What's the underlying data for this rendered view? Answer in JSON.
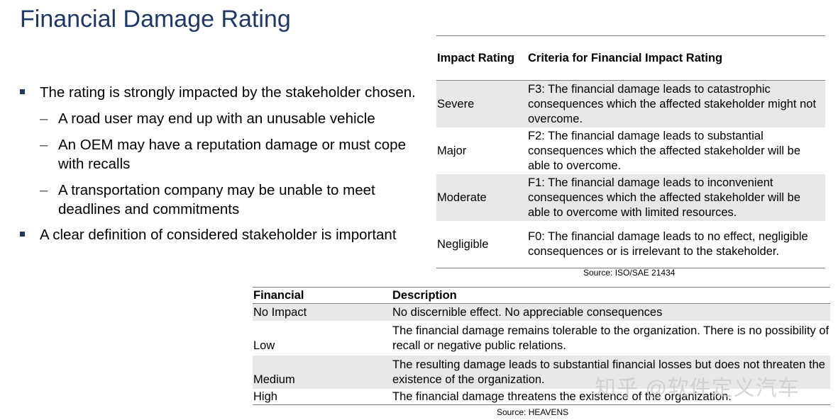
{
  "title": "Financial Damage Rating",
  "bullets": {
    "b1": "The rating is strongly impacted by the stakeholder chosen.",
    "sub": [
      "A road user may end up with an unusable vehicle",
      "An OEM may have a reputation damage or must cope with recalls",
      "A transportation company may be unable to meet deadlines and commitments"
    ],
    "b2": "A clear definition of considered stakeholder is important"
  },
  "table1": {
    "headers": [
      "Impact Rating",
      "Criteria for Financial Impact Rating"
    ],
    "rows": [
      {
        "rating": "Severe",
        "criteria": "F3: The financial damage leads to catastrophic consequences which the affected stakeholder might not overcome."
      },
      {
        "rating": "Major",
        "criteria": "F2: The financial damage leads to substantial consequences which the affected stakeholder will be able to overcome."
      },
      {
        "rating": "Moderate",
        "criteria": "F1: The financial damage leads to inconvenient consequences which the affected stakeholder will be able to overcome with limited resources."
      },
      {
        "rating": "Negligible",
        "criteria": "F0: The financial damage leads to no effect, negligible consequences or is irrelevant to the stakeholder."
      }
    ],
    "source": "Source: ISO/SAE 21434"
  },
  "table2": {
    "headers": [
      "Financial",
      "Description"
    ],
    "rows": [
      {
        "level": "No Impact",
        "description": "No discernible effect.  No appreciable consequences"
      },
      {
        "level": "Low",
        "description": "The financial damage remains tolerable to the organization.  There is no possibility of recall or negative public relations."
      },
      {
        "level": "Medium",
        "description": "The resulting damage leads to substantial financial losses but does not threaten the existence of the organization."
      },
      {
        "level": "High",
        "description": "The financial damage threatens the existence of the organization."
      }
    ],
    "source": "Source: HEAVENS"
  },
  "watermark": "知乎 @软件定义汽车"
}
